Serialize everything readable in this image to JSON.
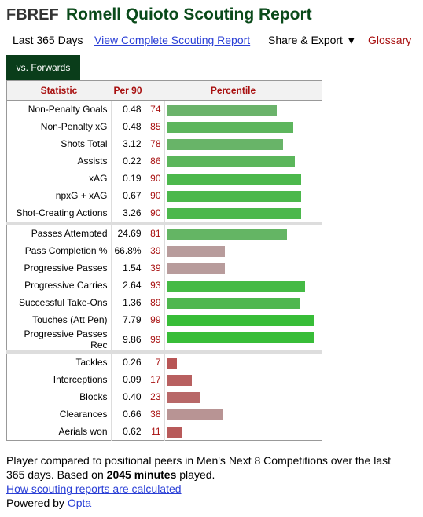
{
  "header": {
    "logo": "FBREF",
    "title": "Romell Quioto Scouting Report"
  },
  "nav": {
    "period": "Last 365 Days",
    "link": "View Complete Scouting Report",
    "share": "Share & Export ▼",
    "glossary": "Glossary"
  },
  "tab": "vs. Forwards",
  "table": {
    "columns": [
      "Statistic",
      "Per 90",
      "Percentile"
    ],
    "groups": [
      [
        {
          "stat": "Non-Penalty Goals",
          "per90": "0.48",
          "percentile": 74,
          "color": "#6bb36b"
        },
        {
          "stat": "Non-Penalty xG",
          "per90": "0.48",
          "percentile": 85,
          "color": "#5db55d"
        },
        {
          "stat": "Shots Total",
          "per90": "3.12",
          "percentile": 78,
          "color": "#68b468"
        },
        {
          "stat": "Assists",
          "per90": "0.22",
          "percentile": 86,
          "color": "#5bb65b"
        },
        {
          "stat": "xAG",
          "per90": "0.19",
          "percentile": 90,
          "color": "#4cb84c"
        },
        {
          "stat": "npxG + xAG",
          "per90": "0.67",
          "percentile": 90,
          "color": "#4cb84c"
        },
        {
          "stat": "Shot-Creating Actions",
          "per90": "3.26",
          "percentile": 90,
          "color": "#4cb84c"
        }
      ],
      [
        {
          "stat": "Passes Attempted",
          "per90": "24.69",
          "percentile": 81,
          "color": "#64b564"
        },
        {
          "stat": "Pass Completion %",
          "per90": "66.8%",
          "percentile": 39,
          "color": "#b89c9c"
        },
        {
          "stat": "Progressive Passes",
          "per90": "1.54",
          "percentile": 39,
          "color": "#b89c9c"
        },
        {
          "stat": "Progressive Carries",
          "per90": "2.64",
          "percentile": 93,
          "color": "#45ba45"
        },
        {
          "stat": "Successful Take-Ons",
          "per90": "1.36",
          "percentile": 89,
          "color": "#4eb74e"
        },
        {
          "stat": "Touches (Att Pen)",
          "per90": "7.79",
          "percentile": 99,
          "color": "#38bd38"
        },
        {
          "stat": "Progressive Passes Rec",
          "per90": "9.86",
          "percentile": 99,
          "color": "#38bd38"
        }
      ],
      [
        {
          "stat": "Tackles",
          "per90": "0.26",
          "percentile": 7,
          "color": "#b85555"
        },
        {
          "stat": "Interceptions",
          "per90": "0.09",
          "percentile": 17,
          "color": "#b86060"
        },
        {
          "stat": "Blocks",
          "per90": "0.40",
          "percentile": 23,
          "color": "#b86868"
        },
        {
          "stat": "Clearances",
          "per90": "0.66",
          "percentile": 38,
          "color": "#b89494"
        },
        {
          "stat": "Aerials won",
          "per90": "0.62",
          "percentile": 11,
          "color": "#b85a5a"
        }
      ]
    ]
  },
  "footer": {
    "note_start": "Player compared to positional peers in Men's Next 8 Competitions over the last 365 days. Based on ",
    "minutes": "2045 minutes",
    "note_end": " played.",
    "link": "How scouting reports are calculated",
    "powered": "Powered by ",
    "opta": "Opta"
  }
}
